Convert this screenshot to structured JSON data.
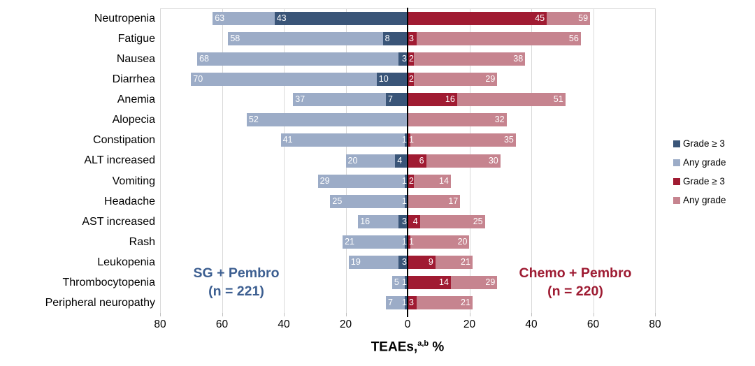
{
  "colors": {
    "blue_dark": "#3A5578",
    "blue_light": "#9CACC7",
    "red_dark": "#A01B32",
    "red_light": "#C6848F",
    "annotation_blue": "#3D5F91",
    "annotation_red": "#9E1B32",
    "gridline": "#D9D9D9",
    "tick": "#BFBFBF",
    "axis": "#000000"
  },
  "chart_data": {
    "type": "bar",
    "subtype": "diverging-stacked-tornado",
    "title": "",
    "xlabel": {
      "prefix": "TEAEs,",
      "sup": "a,b",
      "suffix": " %"
    },
    "x_tick_labels": [
      "80",
      "60",
      "40",
      "20",
      "0",
      "20",
      "40",
      "60",
      "80"
    ],
    "x_max_each_side": 80,
    "grid": true,
    "categories": [
      "Neutropenia",
      "Fatigue",
      "Nausea",
      "Diarrhea",
      "Anemia",
      "Alopecia",
      "Constipation",
      "ALT increased",
      "Vomiting",
      "Headache",
      "AST increased",
      "Rash",
      "Leukopenia",
      "Thrombocytopenia",
      "Peripheral neuropathy"
    ],
    "series": [
      {
        "name": "SG + Pembro Any grade",
        "side": "left",
        "grade": "any",
        "color_key": "blue_light",
        "values": [
          63,
          58,
          68,
          70,
          37,
          52,
          41,
          20,
          29,
          25,
          16,
          21,
          19,
          5,
          7
        ]
      },
      {
        "name": "SG + Pembro Grade ≥ 3",
        "side": "left",
        "grade": "grade3",
        "color_key": "blue_dark",
        "values": [
          43,
          8,
          3,
          10,
          7,
          null,
          1,
          4,
          1,
          1,
          3,
          1,
          3,
          1,
          1
        ]
      },
      {
        "name": "Chemo + Pembro Grade ≥ 3",
        "side": "right",
        "grade": "grade3",
        "color_key": "red_dark",
        "values": [
          45,
          3,
          2,
          2,
          16,
          null,
          1,
          6,
          2,
          null,
          4,
          1,
          9,
          14,
          3
        ]
      },
      {
        "name": "Chemo + Pembro Any grade",
        "side": "right",
        "grade": "any",
        "color_key": "red_light",
        "values": [
          59,
          56,
          38,
          29,
          51,
          32,
          35,
          30,
          14,
          17,
          25,
          20,
          21,
          29,
          21
        ]
      }
    ],
    "annotations": {
      "left": {
        "line1": "SG + Pembro",
        "line2": "(n = 221)"
      },
      "right": {
        "line1": "Chemo + Pembro",
        "line2": "(n = 220)"
      }
    },
    "legend": {
      "position": "right",
      "items": [
        {
          "label": "Grade ≥ 3",
          "color_key": "blue_dark"
        },
        {
          "label": "Any grade",
          "color_key": "blue_light"
        },
        {
          "label": "Grade ≥ 3",
          "color_key": "red_dark"
        },
        {
          "label": "Any grade",
          "color_key": "red_light"
        }
      ]
    }
  }
}
